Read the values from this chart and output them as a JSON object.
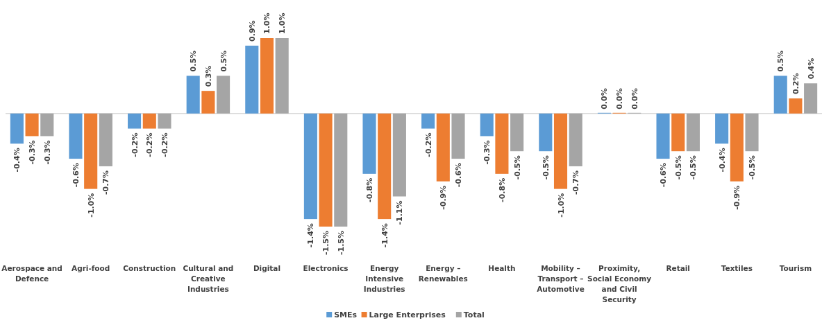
{
  "chart_data": {
    "type": "bar",
    "categories": [
      "Aerospace and Defence",
      "Agri-food",
      "Construction",
      "Cultural and Creative Industries",
      "Digital",
      "Electronics",
      "Energy Intensive Industries",
      "Energy – Renewables",
      "Health",
      "Mobility – Transport – Automotive",
      "Proximity, Social Economy and Civil Security",
      "Retail",
      "Textiles",
      "Tourism"
    ],
    "series": [
      {
        "name": "SMEs",
        "color": "#5b9bd5",
        "values": [
          -0.4,
          -0.6,
          -0.2,
          0.5,
          0.9,
          -1.4,
          -0.8,
          -0.2,
          -0.3,
          -0.5,
          0.0,
          -0.6,
          -0.4,
          0.5
        ],
        "value_labels": [
          "-0.4%",
          "-0.6%",
          "-0.2%",
          "0.5%",
          "0.9%",
          "-1.4%",
          "-0.8%",
          "-0.2%",
          "-0.3%",
          "-0.5%",
          "0.0%",
          "-0.6%",
          "-0.4%",
          "0.5%"
        ]
      },
      {
        "name": "Large Enterprises",
        "color": "#ed7d31",
        "values": [
          -0.3,
          -1.0,
          -0.2,
          0.3,
          1.0,
          -1.5,
          -1.4,
          -0.9,
          -0.8,
          -1.0,
          0.0,
          -0.5,
          -0.9,
          0.2
        ],
        "value_labels": [
          "-0.3%",
          "-1.0%",
          "-0.2%",
          "0.3%",
          "1.0%",
          "-1.5%",
          "-1.4%",
          "-0.9%",
          "-0.8%",
          "-1.0%",
          "0.0%",
          "-0.5%",
          "-0.9%",
          "0.2%"
        ]
      },
      {
        "name": "Total",
        "color": "#a5a5a5",
        "values": [
          -0.3,
          -0.7,
          -0.2,
          0.5,
          1.0,
          -1.5,
          -1.1,
          -0.6,
          -0.5,
          -0.7,
          0.0,
          -0.5,
          -0.5,
          0.4
        ],
        "value_labels": [
          "-0.3%",
          "-0.7%",
          "-0.2%",
          "0.5%",
          "1.0%",
          "-1.5%",
          "-1.1%",
          "-0.6%",
          "-0.5%",
          "-0.7%",
          "0.0%",
          "-0.5%",
          "-0.5%",
          "0.4%"
        ]
      }
    ],
    "legend": "bottom"
  }
}
